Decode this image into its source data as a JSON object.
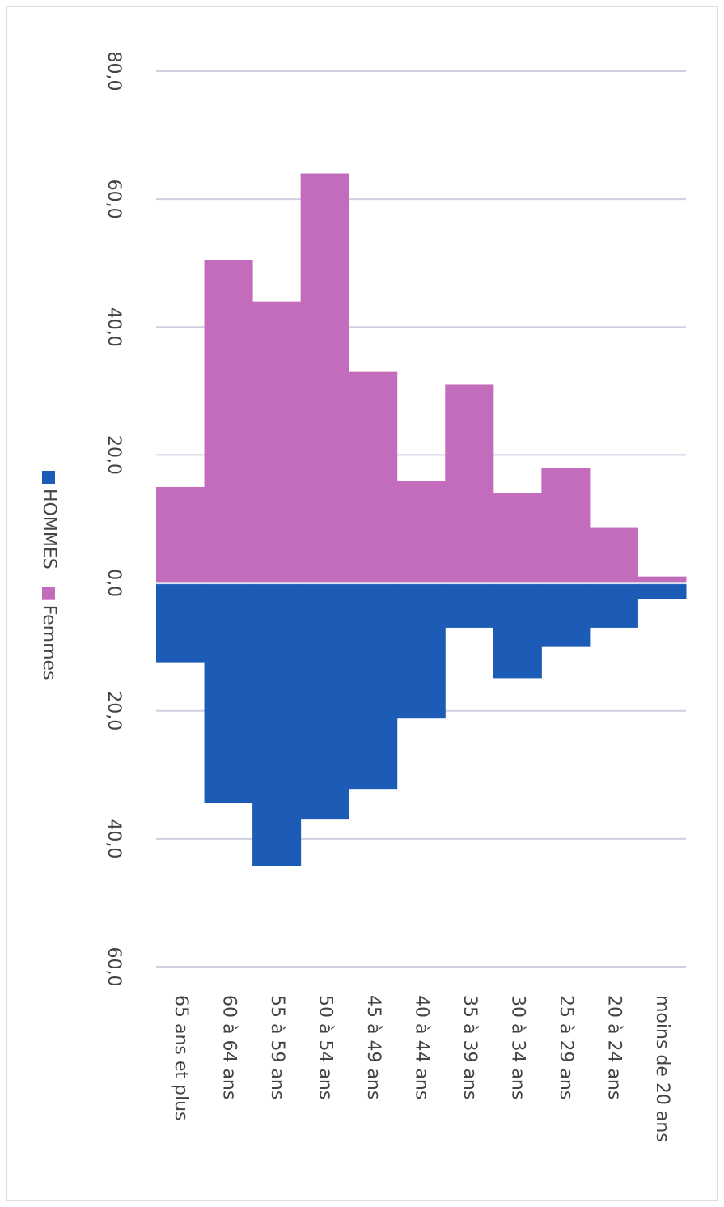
{
  "chart_data": {
    "type": "pyramid",
    "categories": [
      "65 ans et plus",
      "60 à 64 ans",
      "55 à 59 ans",
      "50 à 54 ans",
      "45 à 49 ans",
      "40 à 44 ans",
      "35 à 39 ans",
      "30 à 34 ans",
      "25 à 29 ans",
      "20 à 24 ans",
      "moins de 20 ans"
    ],
    "series": [
      {
        "name": "HOMMES",
        "color": "#1c5cb6",
        "values": [
          -12.4,
          -34.4,
          -44.3,
          -37,
          -32.2,
          -21.2,
          -7,
          -14.9,
          -10,
          -7,
          -2.5
        ]
      },
      {
        "name": "Femmes",
        "color": "#c46cbc",
        "values": [
          15,
          50.5,
          44,
          64,
          33,
          16,
          31,
          14,
          18,
          8.6,
          1
        ]
      }
    ],
    "ylim": [
      -60,
      80
    ],
    "yticks": [
      {
        "value": -60,
        "label": "60,0"
      },
      {
        "value": -40,
        "label": "40,0"
      },
      {
        "value": -20,
        "label": "20,0"
      },
      {
        "value": 0,
        "label": "0,0"
      },
      {
        "value": 20,
        "label": "20,0"
      },
      {
        "value": 40,
        "label": "40,0"
      },
      {
        "value": 60,
        "label": "60,0"
      },
      {
        "value": 80,
        "label": "80,0"
      }
    ],
    "grid": true
  }
}
